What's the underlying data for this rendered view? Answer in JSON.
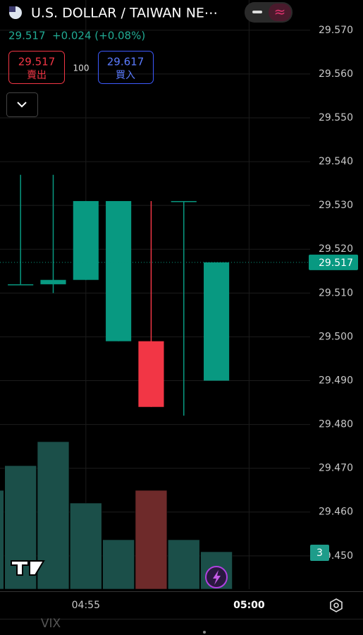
{
  "header": {
    "title": "U.S. DOLLAR / TAIWAN NE⋯",
    "price": "29.517",
    "change": "+0.024 (+0.08%)",
    "sell_price": "29.517",
    "sell_label": "賣出",
    "quantity": "100",
    "buy_price": "29.617",
    "buy_label": "買入"
  },
  "chart_data": {
    "type": "candlestick",
    "x": [
      52,
      53,
      54,
      55,
      56,
      57,
      58,
      59
    ],
    "open": [
      null,
      29.512,
      29.512,
      29.513,
      29.499,
      29.499,
      29.531,
      29.49
    ],
    "high": [
      null,
      29.537,
      29.537,
      29.531,
      29.531,
      29.531,
      29.531,
      29.517
    ],
    "low": [
      null,
      29.512,
      29.51,
      29.513,
      29.499,
      29.484,
      29.482,
      29.49
    ],
    "close": [
      null,
      29.512,
      29.513,
      29.531,
      29.531,
      29.484,
      29.531,
      29.517
    ],
    "volume": [
      140,
      175,
      209,
      122,
      70,
      140,
      70,
      53
    ],
    "volume_colors": [
      "#1b4f49",
      "#1b4f49",
      "#1b4f49",
      "#1b4f49",
      "#1b4f49",
      "#6e2a2a",
      "#1b4f49",
      "#1b4f49"
    ],
    "up_color": "#089981",
    "down_color": "#f23645",
    "xlim": [
      52.37,
      61.87
    ],
    "xticks": [
      {
        "value": 55,
        "label": "04:55"
      },
      {
        "value": 60,
        "label": "05:00"
      }
    ],
    "ylim": [
      29.4424,
      29.5769
    ],
    "yticks": [
      {
        "value": 29.57,
        "label": "29.570"
      },
      {
        "value": 29.56,
        "label": "29.560"
      },
      {
        "value": 29.55,
        "label": "29.550"
      },
      {
        "value": 29.54,
        "label": "29.540"
      },
      {
        "value": 29.53,
        "label": "29.530"
      },
      {
        "value": 29.52,
        "label": "29.520"
      },
      {
        "value": 29.51,
        "label": "29.510"
      },
      {
        "value": 29.5,
        "label": "29.500"
      },
      {
        "value": 29.49,
        "label": "29.490"
      },
      {
        "value": 29.48,
        "label": "29.480"
      },
      {
        "value": 29.47,
        "label": "29.470"
      },
      {
        "value": 29.46,
        "label": "29.460"
      },
      {
        "value": 29.45,
        "label": "29.450"
      }
    ],
    "vlim": [
      0,
      300
    ],
    "last_price": 29.517,
    "grid": true
  },
  "footer": {
    "badge": "3",
    "watchlist": "VIX"
  }
}
